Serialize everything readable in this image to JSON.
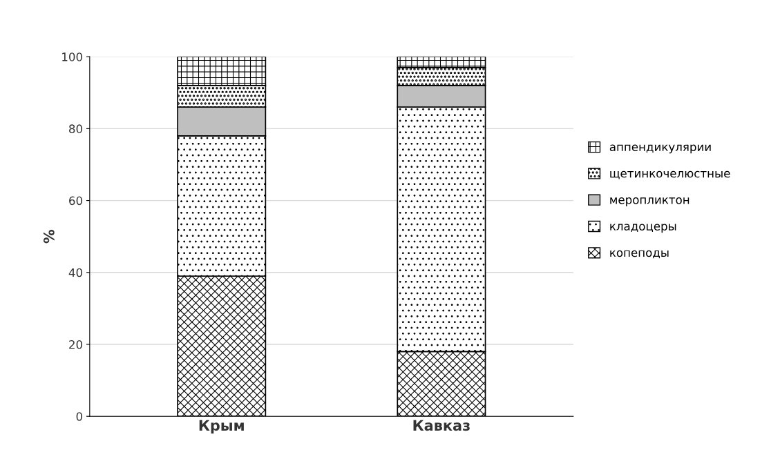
{
  "chart_data": {
    "type": "bar",
    "stacked": true,
    "ylabel": "%",
    "categories": [
      "Крым",
      "Кавказ"
    ],
    "series": [
      {
        "name": "копеподы",
        "color": "#000000",
        "values": [
          39,
          18
        ]
      },
      {
        "name": "кладоцеры",
        "color": "#000000",
        "values": [
          39,
          68
        ]
      },
      {
        "name": "меропликтон",
        "color": "#bfbfbf",
        "values": [
          8,
          6
        ]
      },
      {
        "name": "щетинкочелюстные",
        "color": "#000000",
        "values": [
          6,
          5
        ]
      },
      {
        "name": "аппендикулярии",
        "color": "#000000",
        "values": [
          8,
          3
        ]
      }
    ],
    "ylim": [
      0,
      100
    ],
    "yticks": [
      0,
      20,
      40,
      60,
      80,
      100
    ],
    "grid": "y",
    "legend": "right"
  }
}
